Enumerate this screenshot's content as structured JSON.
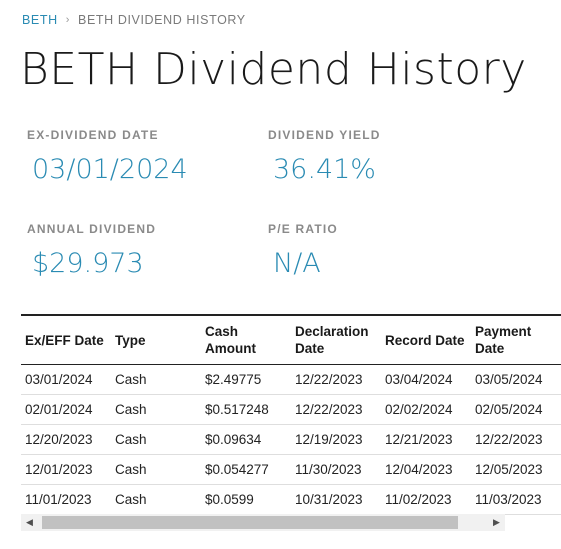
{
  "breadcrumb": {
    "parent": "BETH",
    "separator": "›",
    "current": "BETH DIVIDEND HISTORY"
  },
  "page_title": "BETH Dividend History",
  "stats": {
    "ex_dividend_date": {
      "label": "EX-DIVIDEND DATE",
      "value": "03/01/2024"
    },
    "dividend_yield": {
      "label": "DIVIDEND YIELD",
      "value": "36.41%"
    },
    "annual_dividend": {
      "label": "ANNUAL DIVIDEND",
      "value": "$29.973"
    },
    "pe_ratio": {
      "label": "P/E RATIO",
      "value": "N/A"
    }
  },
  "table": {
    "headers": [
      "Ex/EFF Date",
      "Type",
      "Cash Amount",
      "Declaration Date",
      "Record Date",
      "Payment Date"
    ],
    "rows": [
      [
        "03/01/2024",
        "Cash",
        "$2.49775",
        "12/22/2023",
        "03/04/2024",
        "03/05/2024"
      ],
      [
        "02/01/2024",
        "Cash",
        "$0.517248",
        "12/22/2023",
        "02/02/2024",
        "02/05/2024"
      ],
      [
        "12/20/2023",
        "Cash",
        "$0.09634",
        "12/19/2023",
        "12/21/2023",
        "12/22/2023"
      ],
      [
        "12/01/2023",
        "Cash",
        "$0.054277",
        "11/30/2023",
        "12/04/2023",
        "12/05/2023"
      ],
      [
        "11/01/2023",
        "Cash",
        "$0.0599",
        "10/31/2023",
        "11/02/2023",
        "11/03/2023"
      ]
    ]
  },
  "scrollbar": {
    "left_arrow": "◀",
    "right_arrow": "▶"
  },
  "colors": {
    "accent": "#2a8bb3",
    "label_gray": "#8a8a8a"
  }
}
